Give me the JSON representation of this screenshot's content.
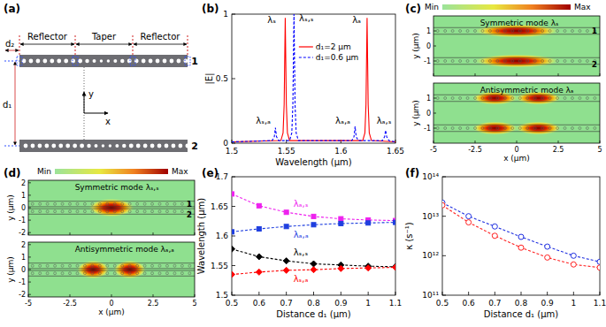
{
  "chart_data": [
    {
      "type": "line",
      "label": "(b)",
      "xlabel": "Wavelength (μm)",
      "ylabel": "|E|",
      "xlim": [
        1.5,
        1.65
      ],
      "xticks": [
        1.5,
        1.55,
        1.6,
        1.65
      ],
      "ylim": [
        0,
        1
      ],
      "yticks": [
        0,
        0.5,
        1
      ],
      "grid": false,
      "legend": "top",
      "annotations": [
        "λₛ",
        "λₛ,ₛ",
        "λₐ",
        "λₛ,ₐ",
        "λₐ,ₐ",
        "λₐ,ₛ"
      ],
      "series": [
        {
          "name": "d₁=2 μm",
          "color": "#ff0000",
          "line_style": "solid",
          "x": [
            1.5,
            1.545,
            1.547,
            1.548,
            1.549,
            1.55,
            1.551,
            1.553,
            1.62,
            1.622,
            1.623,
            1.624,
            1.625,
            1.626,
            1.628,
            1.65
          ],
          "values": [
            0.01,
            0.02,
            0.08,
            0.3,
            0.97,
            0.3,
            0.08,
            0.02,
            0.02,
            0.08,
            0.3,
            0.97,
            0.3,
            0.08,
            0.02,
            0.01
          ]
        },
        {
          "name": "d₁=0.6 μm",
          "color": "#0000ff",
          "line_style": "dashed",
          "x": [
            1.5,
            1.537,
            1.539,
            1.54,
            1.541,
            1.543,
            1.553,
            1.555,
            1.556,
            1.557,
            1.558,
            1.559,
            1.561,
            1.61,
            1.612,
            1.613,
            1.614,
            1.616,
            1.638,
            1.64,
            1.641,
            1.642,
            1.644,
            1.65
          ],
          "values": [
            0.01,
            0.02,
            0.05,
            0.12,
            0.05,
            0.02,
            0.02,
            0.08,
            0.3,
            1.0,
            0.3,
            0.08,
            0.02,
            0.02,
            0.05,
            0.13,
            0.05,
            0.02,
            0.02,
            0.05,
            0.1,
            0.05,
            0.02,
            0.01
          ]
        }
      ]
    },
    {
      "type": "line",
      "label": "(e)",
      "xlabel": "Distance d₁ (μm)",
      "ylabel": "Wavelength (μm)",
      "x": [
        0.5,
        0.6,
        0.7,
        0.8,
        0.9,
        1,
        1.1
      ],
      "xlim": [
        0.5,
        1.1
      ],
      "xticks": [
        0.5,
        0.6,
        0.7,
        0.8,
        0.9,
        1,
        1.1
      ],
      "ylim": [
        1.5,
        1.7
      ],
      "yticks": [
        1.5,
        1.55,
        1.6,
        1.65,
        1.7
      ],
      "grid": false,
      "series": [
        {
          "name": "λₐ,ₛ",
          "color": "#ee22ee",
          "marker": "square",
          "line_style": "dashed",
          "values": [
            1.671,
            1.651,
            1.64,
            1.633,
            1.629,
            1.627,
            1.626
          ]
        },
        {
          "name": "λₐ,ₐ",
          "color": "#1f3fdf",
          "marker": "square",
          "line_style": "dashed",
          "values": [
            1.607,
            1.612,
            1.616,
            1.619,
            1.621,
            1.622,
            1.623
          ]
        },
        {
          "name": "λₛ,ₛ",
          "color": "#000000",
          "marker": "diamond",
          "line_style": "dashed",
          "values": [
            1.578,
            1.565,
            1.558,
            1.553,
            1.551,
            1.549,
            1.548
          ]
        },
        {
          "name": "λₛ,ₐ",
          "color": "#ff0000",
          "marker": "diamond",
          "line_style": "dashed",
          "values": [
            1.535,
            1.539,
            1.542,
            1.543,
            1.545,
            1.546,
            1.547
          ]
        }
      ]
    },
    {
      "type": "line",
      "label": "(f)",
      "log": "y",
      "xlabel": "Distance d₁ (μm)",
      "ylabel": "κ (s⁻¹)",
      "x": [
        0.5,
        0.6,
        0.7,
        0.8,
        0.9,
        1,
        1.1
      ],
      "xlim": [
        0.5,
        1.1
      ],
      "xticks": [
        0.5,
        0.6,
        0.7,
        0.8,
        0.9,
        1,
        1.1
      ],
      "ylim": [
        100000000000.0,
        100000000000000.0
      ],
      "yticks": [
        {
          "value": 100000000000.0,
          "label": "10¹¹"
        },
        {
          "value": 1000000000000.0,
          "label": "10¹²"
        },
        {
          "value": 10000000000000.0,
          "label": "10¹³"
        },
        {
          "value": 100000000000000.0,
          "label": "10¹⁴"
        }
      ],
      "grid": false,
      "series": [
        {
          "color": "#2030e0",
          "marker": "circle",
          "line_style": "dashed",
          "values": [
            22000000000000.0,
            10000000000000.0,
            5500000000000.0,
            3000000000000.0,
            1700000000000.0,
            1000000000000.0,
            700000000000.0
          ]
        },
        {
          "color": "#ff2020",
          "marker": "circle",
          "line_style": "dashed",
          "values": [
            19000000000000.0,
            7000000000000.0,
            3200000000000.0,
            1600000000000.0,
            900000000000.0,
            600000000000.0,
            500000000000.0
          ]
        }
      ]
    }
  ],
  "diagram": {
    "panel_a": {
      "label": "(a)",
      "sections": [
        "Reflector",
        "Taper",
        "Reflector"
      ],
      "waveguides": [
        "1",
        "2"
      ],
      "dimensions": [
        "d₁",
        "d₂"
      ],
      "axes": [
        "y",
        "x"
      ]
    },
    "panel_c": {
      "label": "(c)",
      "colorbar": [
        "Min",
        "Max"
      ],
      "xlim": [
        -5,
        5
      ],
      "ylim": [
        -2,
        2
      ],
      "xticks": [
        -5,
        -2.5,
        0,
        2.5,
        5
      ],
      "yticks": [
        1,
        0,
        -1
      ],
      "xlabel": "x (μm)",
      "ylabel": "y (μm)",
      "maps": [
        {
          "title": "Symmetric mode λₛ",
          "waveguides": [
            "1",
            "2"
          ]
        },
        {
          "title": "Antisymmetric mode λₐ"
        }
      ]
    },
    "panel_d": {
      "label": "(d)",
      "colorbar": [
        "Min",
        "Max"
      ],
      "xlim": [
        -5,
        5
      ],
      "ylim": [
        -2.2,
        2.2
      ],
      "xticks": [
        -5,
        -2.5,
        0,
        2.5,
        5
      ],
      "yticks": [
        2,
        1,
        0,
        -1,
        -2
      ],
      "xlabel": "x (μm)",
      "ylabel": "y (μm)",
      "maps": [
        {
          "title": "Symmetric mode λₛ,ₛ",
          "waveguides": [
            "1",
            "2"
          ]
        },
        {
          "title": "Antisymmetric mode λₐ,ₐ"
        }
      ]
    }
  }
}
